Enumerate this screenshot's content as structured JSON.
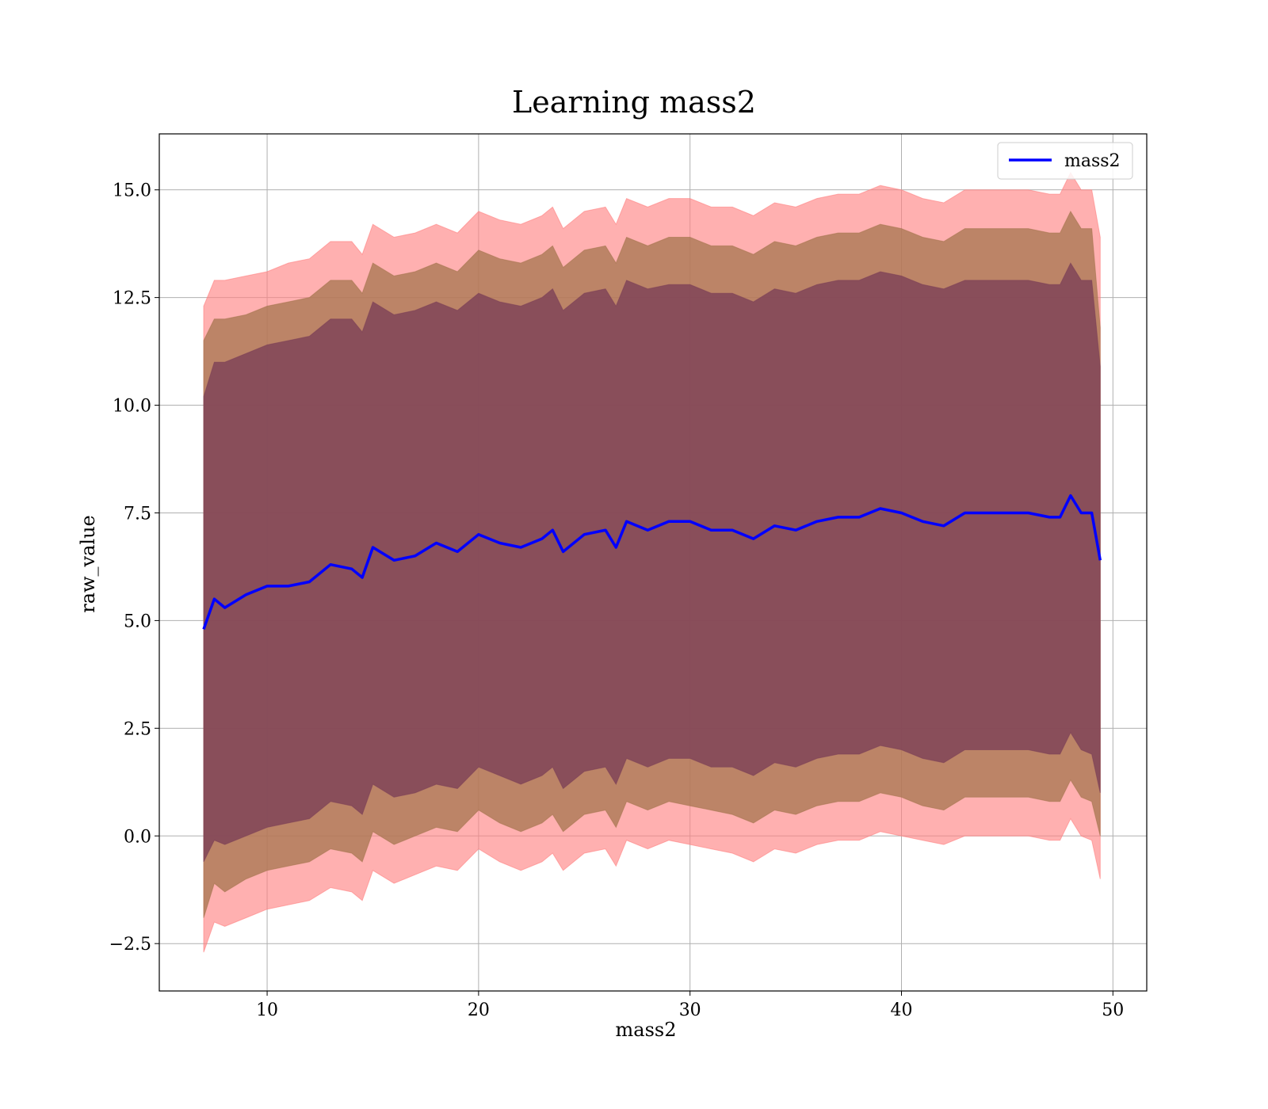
{
  "chart_data": {
    "type": "area",
    "title": "Learning mass2",
    "xlabel": "mass2",
    "ylabel": "raw_value",
    "xlim": [
      4.9,
      51.6
    ],
    "ylim": [
      -3.6,
      16.3
    ],
    "xticks": [
      10,
      20,
      30,
      40,
      50
    ],
    "yticks": [
      -2.5,
      0.0,
      2.5,
      5.0,
      7.5,
      10.0,
      12.5,
      15.0
    ],
    "ytick_labels": [
      "−2.5",
      "0.0",
      "2.5",
      "5.0",
      "7.5",
      "10.0",
      "12.5",
      "15.0"
    ],
    "grid": true,
    "legend": {
      "position": "top-right",
      "entries": [
        "mass2"
      ]
    },
    "colors": {
      "line": "#0000ff",
      "band_outer": "#ff7f7f",
      "band_middle": "#a5754f",
      "band_inner": "#7b3f57"
    },
    "x": [
      7.0,
      7.5,
      8.0,
      9.0,
      10.0,
      11.0,
      12.0,
      13.0,
      14.0,
      14.5,
      15.0,
      16.0,
      17.0,
      18.0,
      19.0,
      20.0,
      21.0,
      22.0,
      23.0,
      23.5,
      24.0,
      25.0,
      26.0,
      26.5,
      27.0,
      28.0,
      29.0,
      30.0,
      31.0,
      32.0,
      33.0,
      34.0,
      35.0,
      36.0,
      37.0,
      38.0,
      39.0,
      40.0,
      41.0,
      42.0,
      43.0,
      44.0,
      45.0,
      46.0,
      47.0,
      47.5,
      48.0,
      48.5,
      49.0,
      49.4
    ],
    "series": [
      {
        "name": "mass2",
        "values": [
          4.8,
          5.5,
          5.3,
          5.6,
          5.8,
          5.8,
          5.9,
          6.3,
          6.2,
          6.0,
          6.7,
          6.4,
          6.5,
          6.8,
          6.6,
          7.0,
          6.8,
          6.7,
          6.9,
          7.1,
          6.6,
          7.0,
          7.1,
          6.7,
          7.3,
          7.1,
          7.3,
          7.3,
          7.1,
          7.1,
          6.9,
          7.2,
          7.1,
          7.3,
          7.4,
          7.4,
          7.6,
          7.5,
          7.3,
          7.2,
          7.5,
          7.5,
          7.5,
          7.5,
          7.4,
          7.4,
          7.9,
          7.5,
          7.5,
          6.4
        ]
      }
    ],
    "bands": [
      {
        "upper": [
          12.3,
          12.9,
          12.9,
          13.0,
          13.1,
          13.3,
          13.4,
          13.8,
          13.8,
          13.5,
          14.2,
          13.9,
          14.0,
          14.2,
          14.0,
          14.5,
          14.3,
          14.2,
          14.4,
          14.6,
          14.1,
          14.5,
          14.6,
          14.2,
          14.8,
          14.6,
          14.8,
          14.8,
          14.6,
          14.6,
          14.4,
          14.7,
          14.6,
          14.8,
          14.9,
          14.9,
          15.1,
          15.0,
          14.8,
          14.7,
          15.0,
          15.0,
          15.0,
          15.0,
          14.9,
          14.9,
          15.4,
          15.0,
          15.0,
          13.9
        ],
        "lower": [
          -2.7,
          -2.0,
          -2.1,
          -1.9,
          -1.7,
          -1.6,
          -1.5,
          -1.2,
          -1.3,
          -1.5,
          -0.8,
          -1.1,
          -0.9,
          -0.7,
          -0.8,
          -0.3,
          -0.6,
          -0.8,
          -0.6,
          -0.4,
          -0.8,
          -0.4,
          -0.3,
          -0.7,
          -0.1,
          -0.3,
          -0.1,
          -0.2,
          -0.3,
          -0.4,
          -0.6,
          -0.3,
          -0.4,
          -0.2,
          -0.1,
          -0.1,
          0.1,
          0.0,
          -0.1,
          -0.2,
          0.0,
          0.0,
          0.0,
          0.0,
          -0.1,
          -0.1,
          0.4,
          0.0,
          -0.1,
          -1.0
        ]
      },
      {
        "upper": [
          11.5,
          12.0,
          12.0,
          12.1,
          12.3,
          12.4,
          12.5,
          12.9,
          12.9,
          12.6,
          13.3,
          13.0,
          13.1,
          13.3,
          13.1,
          13.6,
          13.4,
          13.3,
          13.5,
          13.7,
          13.2,
          13.6,
          13.7,
          13.3,
          13.9,
          13.7,
          13.9,
          13.9,
          13.7,
          13.7,
          13.5,
          13.8,
          13.7,
          13.9,
          14.0,
          14.0,
          14.2,
          14.1,
          13.9,
          13.8,
          14.1,
          14.1,
          14.1,
          14.1,
          14.0,
          14.0,
          14.5,
          14.1,
          14.1,
          11.8
        ],
        "lower": [
          -1.9,
          -1.1,
          -1.3,
          -1.0,
          -0.8,
          -0.7,
          -0.6,
          -0.3,
          -0.4,
          -0.6,
          0.1,
          -0.2,
          0.0,
          0.2,
          0.1,
          0.6,
          0.3,
          0.1,
          0.3,
          0.5,
          0.1,
          0.5,
          0.6,
          0.2,
          0.8,
          0.6,
          0.8,
          0.7,
          0.6,
          0.5,
          0.3,
          0.6,
          0.5,
          0.7,
          0.8,
          0.8,
          1.0,
          0.9,
          0.7,
          0.6,
          0.9,
          0.9,
          0.9,
          0.9,
          0.8,
          0.8,
          1.3,
          0.9,
          0.8,
          0.0
        ]
      },
      {
        "upper": [
          10.2,
          11.0,
          11.0,
          11.2,
          11.4,
          11.5,
          11.6,
          12.0,
          12.0,
          11.7,
          12.4,
          12.1,
          12.2,
          12.4,
          12.2,
          12.6,
          12.4,
          12.3,
          12.5,
          12.7,
          12.2,
          12.6,
          12.7,
          12.3,
          12.9,
          12.7,
          12.8,
          12.8,
          12.6,
          12.6,
          12.4,
          12.7,
          12.6,
          12.8,
          12.9,
          12.9,
          13.1,
          13.0,
          12.8,
          12.7,
          12.9,
          12.9,
          12.9,
          12.9,
          12.8,
          12.8,
          13.3,
          12.9,
          12.9,
          10.9
        ],
        "lower": [
          -0.6,
          -0.1,
          -0.2,
          0.0,
          0.2,
          0.3,
          0.4,
          0.8,
          0.7,
          0.5,
          1.2,
          0.9,
          1.0,
          1.2,
          1.1,
          1.6,
          1.4,
          1.2,
          1.4,
          1.6,
          1.1,
          1.5,
          1.6,
          1.2,
          1.8,
          1.6,
          1.8,
          1.8,
          1.6,
          1.6,
          1.4,
          1.7,
          1.6,
          1.8,
          1.9,
          1.9,
          2.1,
          2.0,
          1.8,
          1.7,
          2.0,
          2.0,
          2.0,
          2.0,
          1.9,
          1.9,
          2.4,
          2.0,
          1.9,
          1.0
        ]
      }
    ]
  }
}
